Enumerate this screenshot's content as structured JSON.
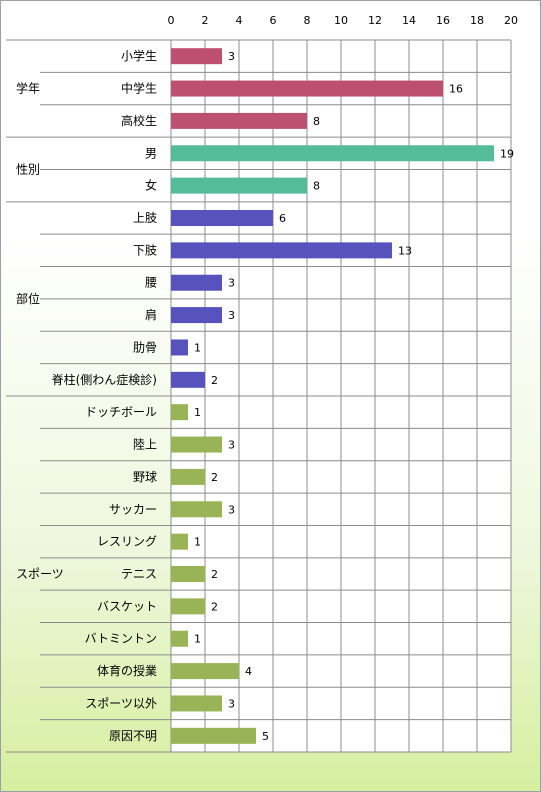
{
  "chart_data": {
    "type": "bar",
    "orientation": "horizontal",
    "xlim": [
      0,
      20
    ],
    "xticks": [
      "0",
      "2",
      "4",
      "6",
      "8",
      "10",
      "12",
      "14",
      "16",
      "18",
      "20"
    ],
    "grid": true,
    "colors": {
      "学年": "#bd5072",
      "性別": "#55bc99",
      "部位": "#5653bd",
      "スポーツ": "#98b456"
    },
    "groups": [
      {
        "name": "学年",
        "items": [
          {
            "label": "小学生",
            "value": 3
          },
          {
            "label": "中学生",
            "value": 16
          },
          {
            "label": "高校生",
            "value": 8
          }
        ]
      },
      {
        "name": "性別",
        "items": [
          {
            "label": "男",
            "value": 19
          },
          {
            "label": "女",
            "value": 8
          }
        ]
      },
      {
        "name": "部位",
        "items": [
          {
            "label": "上肢",
            "value": 6
          },
          {
            "label": "下肢",
            "value": 13
          },
          {
            "label": "腰",
            "value": 3
          },
          {
            "label": "肩",
            "value": 3
          },
          {
            "label": "肋骨",
            "value": 1
          },
          {
            "label": "脊柱(側わん症検診)",
            "value": 2
          }
        ]
      },
      {
        "name": "スポーツ",
        "items": [
          {
            "label": "ドッチボール",
            "value": 1
          },
          {
            "label": "陸上",
            "value": 3
          },
          {
            "label": "野球",
            "value": 2
          },
          {
            "label": "サッカー",
            "value": 3
          },
          {
            "label": "レスリング",
            "value": 1
          },
          {
            "label": "テニス",
            "value": 2
          },
          {
            "label": "バスケット",
            "value": 2
          },
          {
            "label": "バトミントン",
            "value": 1
          },
          {
            "label": "体育の授業",
            "value": 4
          },
          {
            "label": "スポーツ以外",
            "value": 3
          },
          {
            "label": "原因不明",
            "value": 5
          }
        ]
      }
    ]
  }
}
